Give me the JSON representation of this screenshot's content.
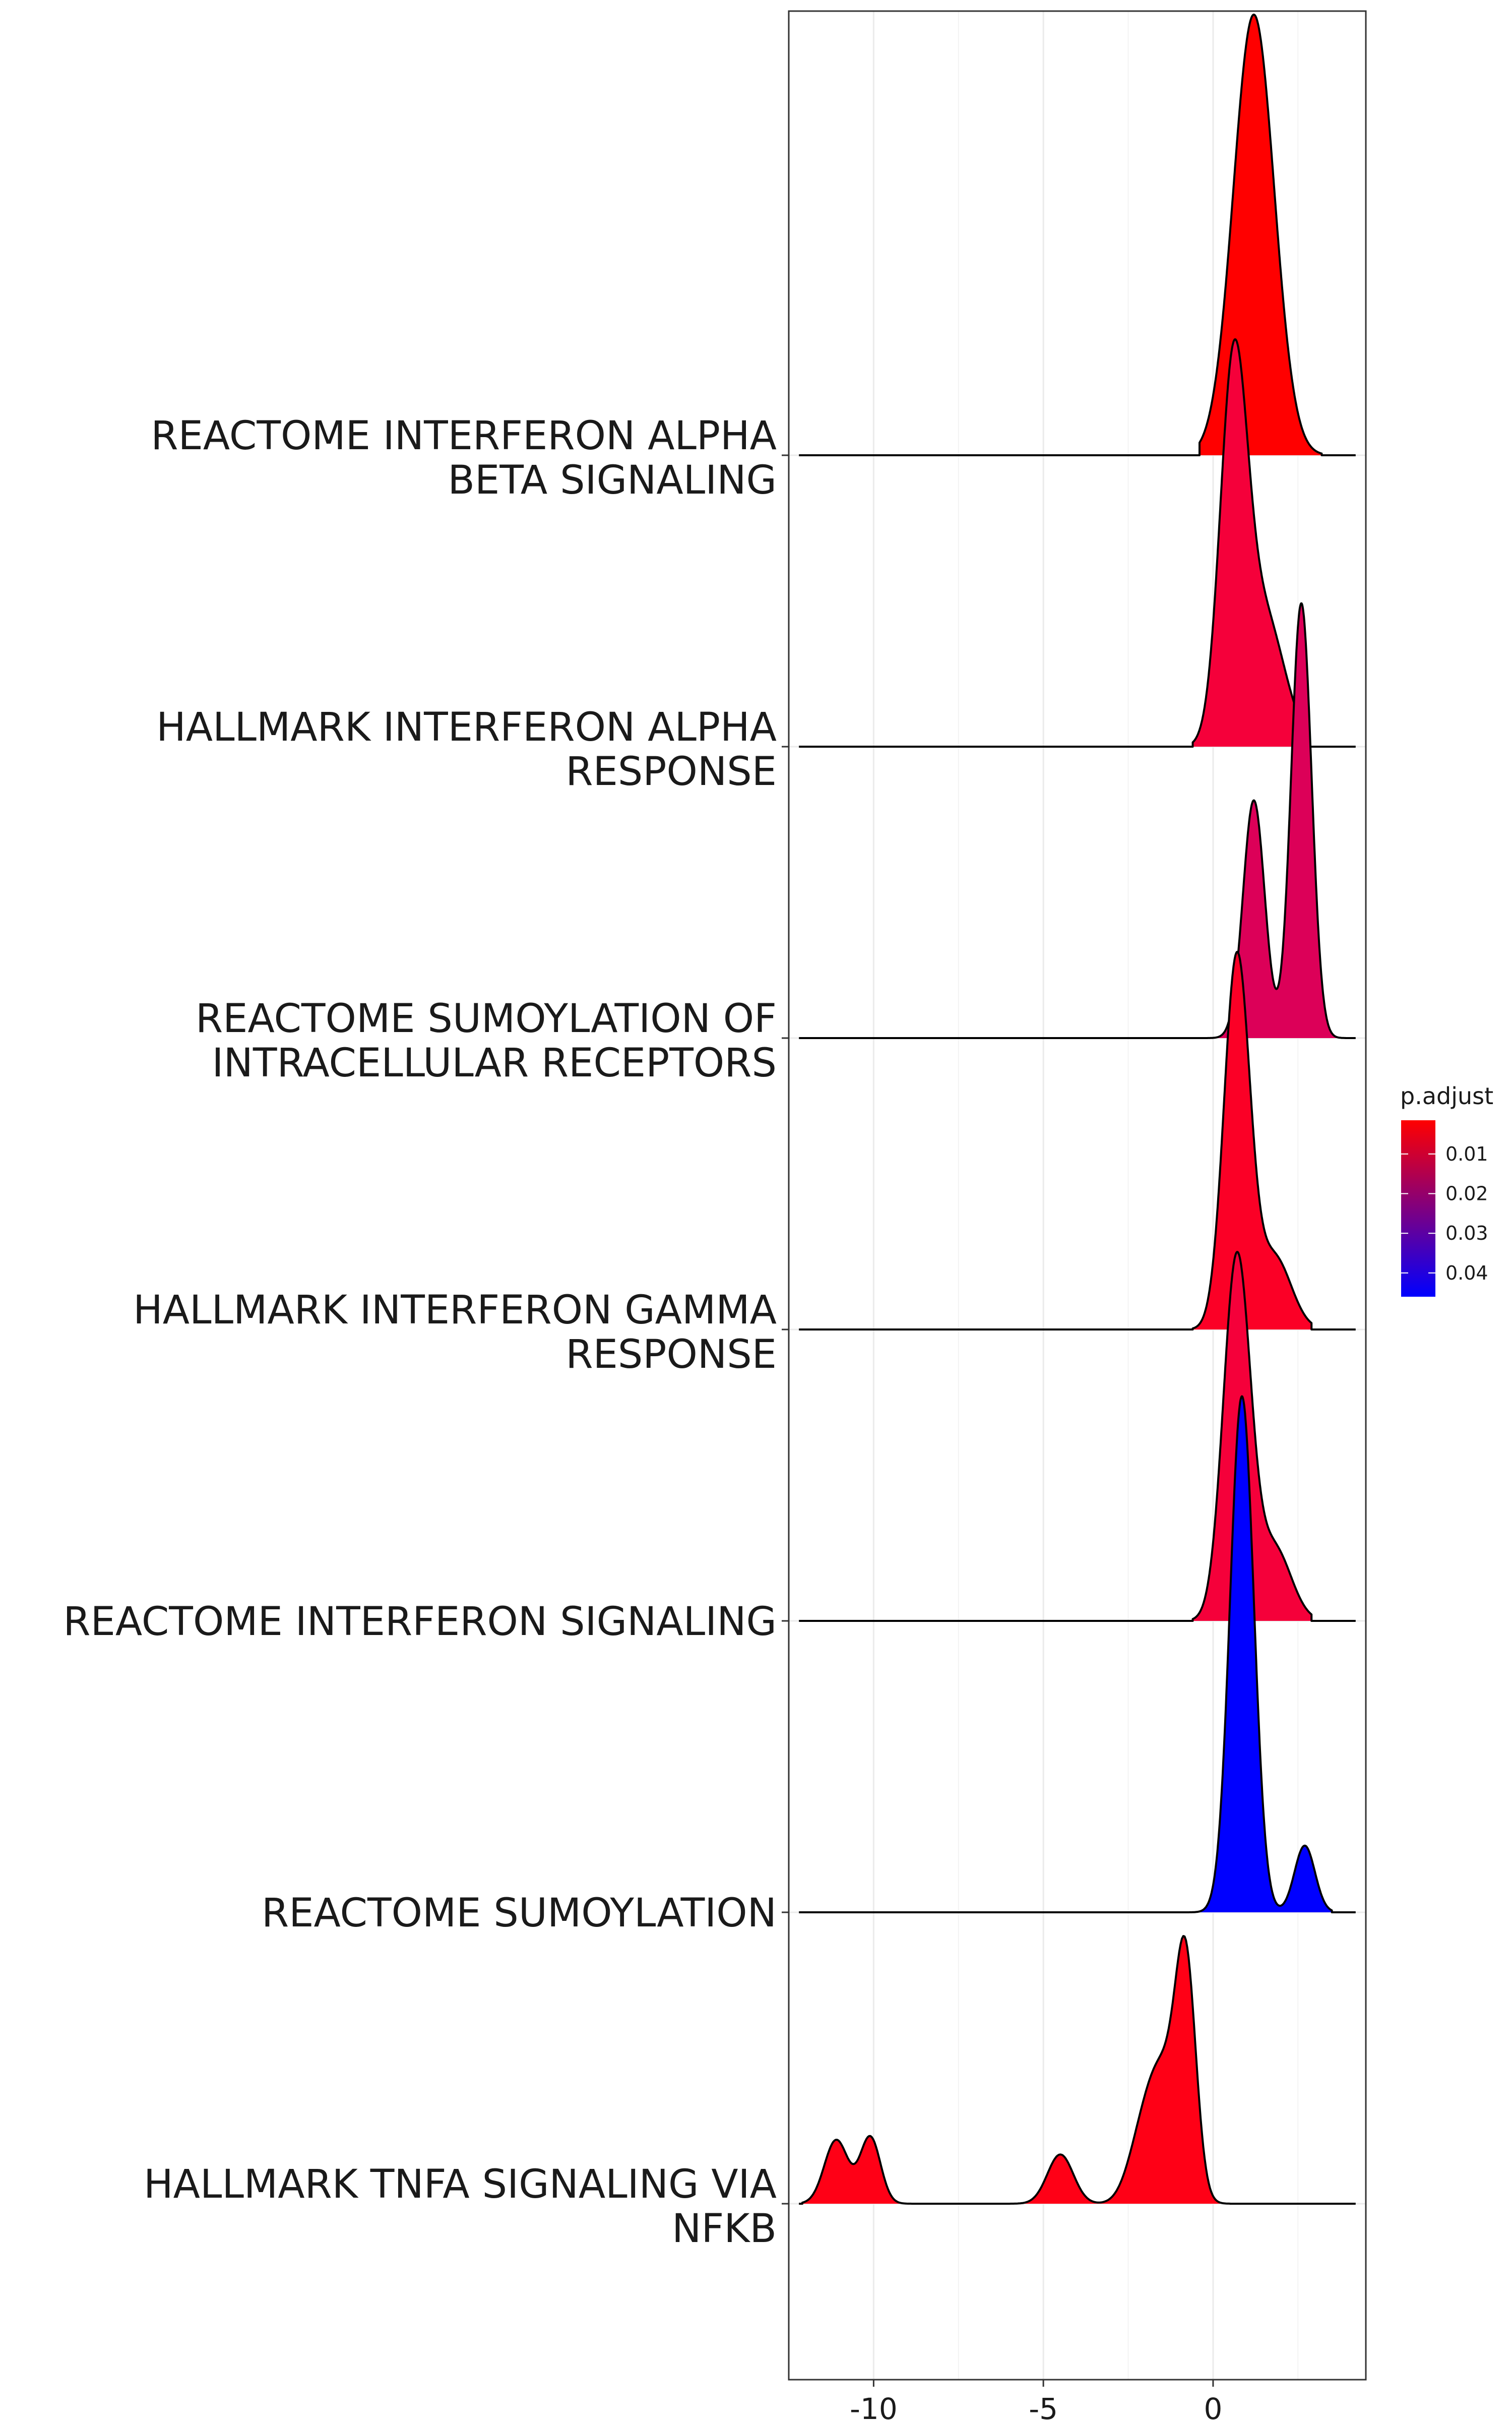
{
  "chart_data": {
    "type": "ridgeline",
    "xlim": [
      -12.5,
      4.5
    ],
    "x_ticks": [
      "-10",
      "-5",
      "0"
    ],
    "x_tick_values": [
      -10,
      -5,
      0
    ],
    "xlabel": "",
    "ylabel": "",
    "grid": true,
    "legend": {
      "title": "p.adjust",
      "position": "right",
      "type": "colorbar",
      "range": [
        0.0015,
        0.046
      ],
      "ticks": [
        "0.01",
        "0.02",
        "0.03",
        "0.04"
      ],
      "tick_values": [
        0.01,
        0.02,
        0.03,
        0.04
      ],
      "colors": [
        "#ff0000",
        "#0000ff"
      ]
    },
    "series": [
      {
        "label_lines": [
          "REACTOME INTERFERON ALPHA",
          "BETA SIGNALING"
        ],
        "fill": "#ff0000",
        "p_adjust": 0.002,
        "x_range": [
          -0.4,
          3.2
        ],
        "peaks": [
          {
            "x": 1.2,
            "height": 1.52,
            "width": 0.6
          }
        ]
      },
      {
        "label_lines": [
          "HALLMARK INTERFERON ALPHA",
          "RESPONSE"
        ],
        "fill": "#f5003a",
        "p_adjust": 0.008,
        "x_range": [
          -0.6,
          2.6
        ],
        "peaks": [
          {
            "x": 0.6,
            "height": 1.25,
            "width": 0.4
          },
          {
            "x": 1.5,
            "height": 0.45,
            "width": 0.6
          }
        ]
      },
      {
        "label_lines": [
          "REACTOME SUMOYLATION OF",
          "INTRACELLULAR RECEPTORS"
        ],
        "fill": "#dc0058",
        "p_adjust": 0.015,
        "x_range": [
          -0.5,
          3.9
        ],
        "peaks": [
          {
            "x": 1.2,
            "height": 0.82,
            "width": 0.32
          },
          {
            "x": 2.6,
            "height": 1.5,
            "width": 0.3
          }
        ]
      },
      {
        "label_lines": [
          "HALLMARK INTERFERON GAMMA",
          "RESPONSE"
        ],
        "fill": "#fb0026",
        "p_adjust": 0.004,
        "x_range": [
          -0.6,
          2.9
        ],
        "peaks": [
          {
            "x": 0.7,
            "height": 1.28,
            "width": 0.38
          },
          {
            "x": 1.8,
            "height": 0.25,
            "width": 0.5
          }
        ]
      },
      {
        "label_lines": [
          "REACTOME INTERFERON SIGNALING"
        ],
        "fill": "#f5003a",
        "p_adjust": 0.008,
        "x_range": [
          -0.6,
          2.9
        ],
        "peaks": [
          {
            "x": 0.7,
            "height": 1.25,
            "width": 0.4
          },
          {
            "x": 1.8,
            "height": 0.25,
            "width": 0.5
          }
        ]
      },
      {
        "label_lines": [
          "REACTOME SUMOYLATION"
        ],
        "fill": "#0000ff",
        "p_adjust": 0.045,
        "x_range": [
          -0.7,
          3.5
        ],
        "peaks": [
          {
            "x": 0.85,
            "height": 1.78,
            "width": 0.35
          },
          {
            "x": 2.7,
            "height": 0.23,
            "width": 0.3
          }
        ]
      },
      {
        "label_lines": [
          "HALLMARK TNFA SIGNALING VIA",
          "NFKB"
        ],
        "fill": "#ff0016",
        "p_adjust": 0.003,
        "x_range": [
          -12.1,
          0.5
        ],
        "peaks": [
          {
            "x": -11.1,
            "height": 0.22,
            "width": 0.35
          },
          {
            "x": -10.1,
            "height": 0.23,
            "width": 0.3
          },
          {
            "x": -4.5,
            "height": 0.17,
            "width": 0.38
          },
          {
            "x": -2.2,
            "height": 0.12,
            "width": 0.4
          },
          {
            "x": -1.5,
            "height": 0.45,
            "width": 0.5
          },
          {
            "x": -0.8,
            "height": 0.74,
            "width": 0.3
          }
        ]
      }
    ]
  }
}
